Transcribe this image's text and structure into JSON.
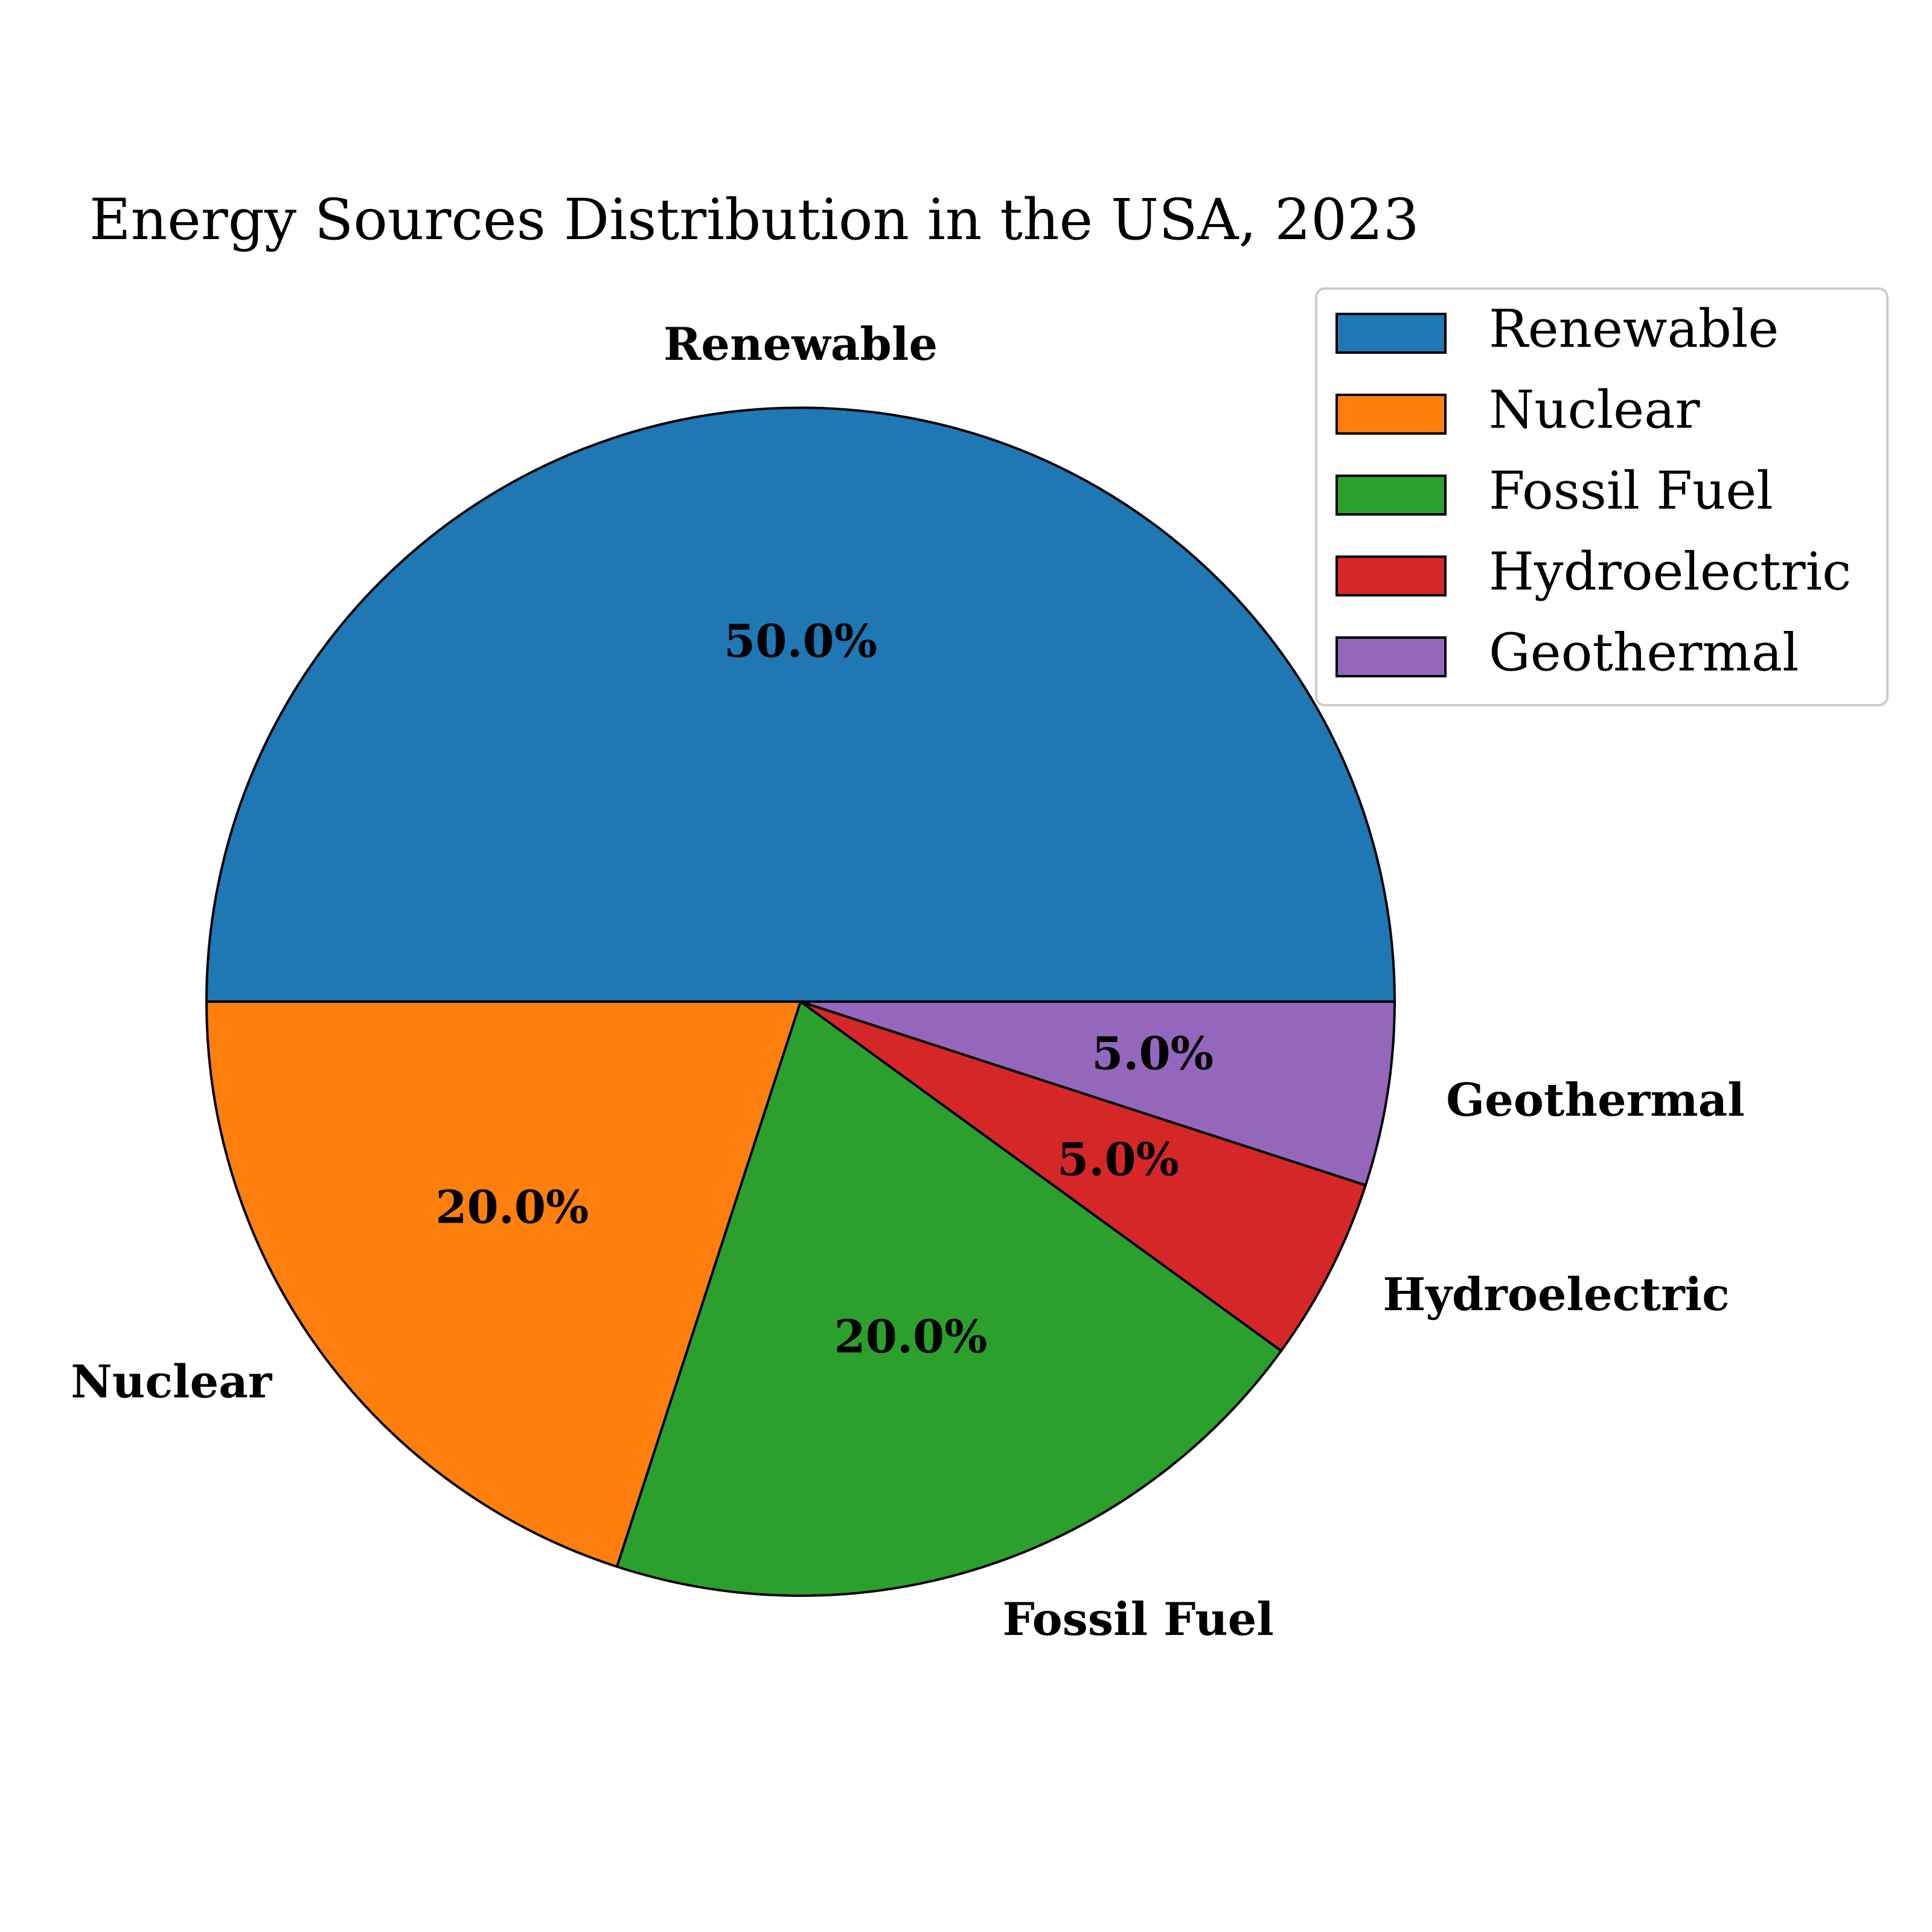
{
  "chart_data": {
    "type": "pie",
    "title": "Energy Sources Distribution in the USA, 2023",
    "categories": [
      "Renewable",
      "Nuclear",
      "Fossil Fuel",
      "Hydroelectric",
      "Geothermal"
    ],
    "values": [
      50.0,
      20.0,
      20.0,
      5.0,
      5.0
    ],
    "percent_labels": [
      "50.0%",
      "20.0%",
      "20.0%",
      "5.0%",
      "5.0%"
    ],
    "colors": [
      "#1f77b4",
      "#ff7f0e",
      "#2ca02c",
      "#d62728",
      "#9467bd"
    ],
    "start_angle_deg": 0,
    "direction": "counterclockwise",
    "legend": {
      "placement": "upper-right",
      "entries": [
        "Renewable",
        "Nuclear",
        "Fossil Fuel",
        "Hydroelectric",
        "Geothermal"
      ]
    }
  }
}
